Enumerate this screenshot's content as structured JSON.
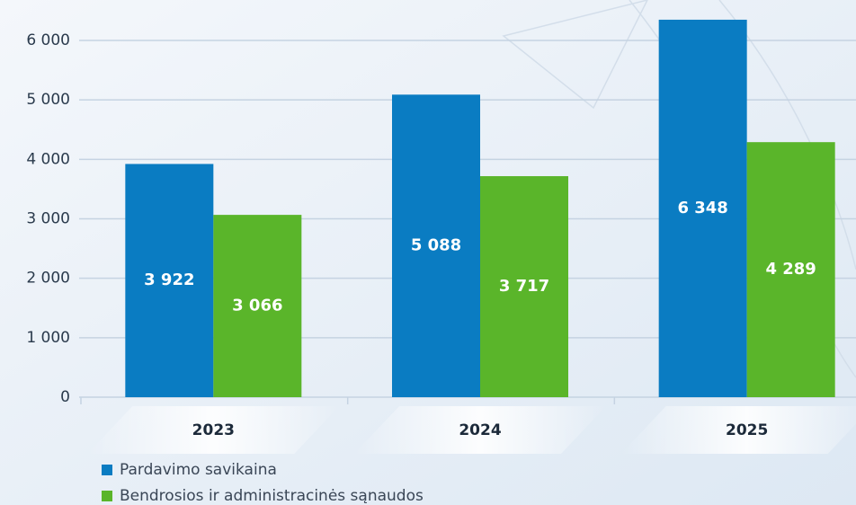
{
  "chart_data": {
    "type": "bar",
    "categories": [
      "2023",
      "2024",
      "2025"
    ],
    "series": [
      {
        "name": "Pardavimo savikaina",
        "color": "#0a7cc2",
        "values": [
          3922,
          5088,
          6348
        ],
        "value_labels": [
          "3 922",
          "5 088",
          "6 348"
        ]
      },
      {
        "name": "Bendrosios ir administracinės sąnaudos",
        "color": "#5ab52a",
        "values": [
          3066,
          3717,
          4289
        ],
        "value_labels": [
          "3 066",
          "3 717",
          "4 289"
        ]
      }
    ],
    "ylim": [
      0,
      6400
    ],
    "yticks": [
      0,
      {
        "value": 1000,
        "label": "1 000"
      },
      {
        "value": 2000,
        "label": "2 000"
      },
      {
        "value": 3000,
        "label": "3 000"
      },
      {
        "value": 4000,
        "label": "4 000"
      },
      {
        "value": 5000,
        "label": "5 000"
      },
      {
        "value": 6000,
        "label": "6 000"
      }
    ],
    "grid": true
  }
}
